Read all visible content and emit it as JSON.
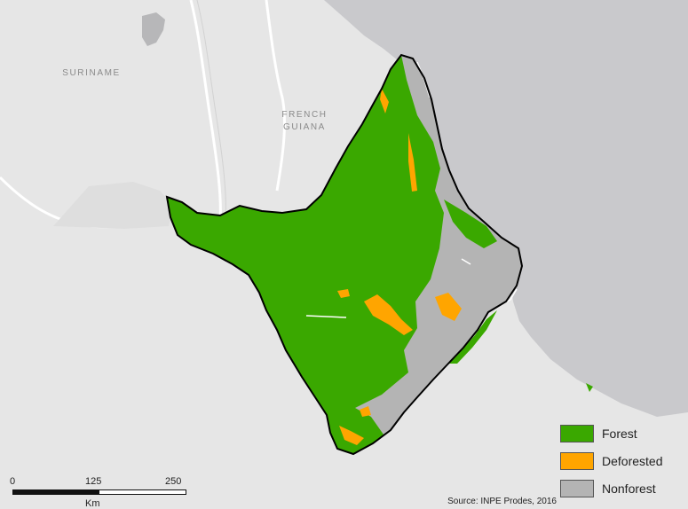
{
  "map": {
    "country_labels": [
      {
        "id": "suriname",
        "text": "SURINAME"
      },
      {
        "id": "french-guiana",
        "text": "FRENCH\nGUIANA"
      }
    ],
    "colors": {
      "ocean": "#c9c9cc",
      "land": "#e6e6e6",
      "forest": "#3aa800",
      "deforested": "#ffa500",
      "nonforest": "#b4b4b4",
      "border": "#000000"
    }
  },
  "legend": {
    "items": [
      {
        "label": "Forest",
        "color": "#3aa800"
      },
      {
        "label": "Deforested",
        "color": "#ffa500"
      },
      {
        "label": "Nonforest",
        "color": "#b4b4b4"
      }
    ]
  },
  "scalebar": {
    "ticks": [
      "0",
      "125",
      "250"
    ],
    "unit": "Km"
  },
  "source": "Source: INPE Prodes, 2016"
}
